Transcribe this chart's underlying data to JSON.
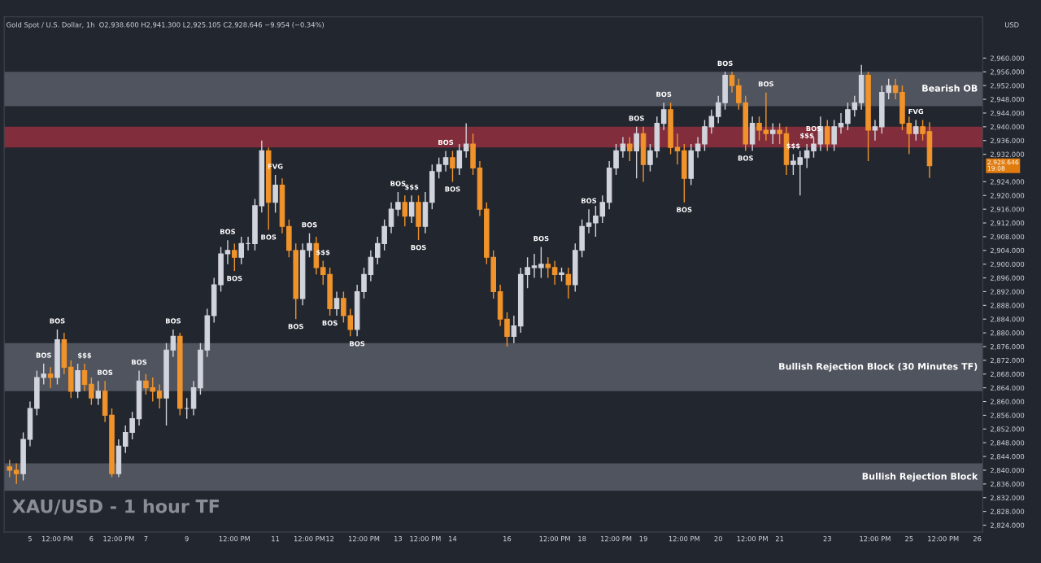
{
  "chart_data": {
    "type": "candlestick",
    "title": "XAU/USD - 1 hour TF",
    "subtitle": "Gold Spot / U.S. Dollar, 1h  O2,938.600 H2,941.300 L2,925.105 C2,928.646 −9.954 (−0.34%)",
    "categories": [
      null,
      null,
      null,
      "5",
      null,
      null,
      null,
      "12:00 PM",
      null,
      null,
      null,
      null,
      "6",
      null,
      null,
      null,
      "12:00 PM",
      null,
      null,
      null,
      "7",
      null,
      null,
      null,
      null,
      null,
      "9",
      null,
      null,
      null,
      null,
      null,
      null,
      "12:00 PM",
      null,
      null,
      null,
      null,
      null,
      "11",
      null,
      null,
      null,
      null,
      "12:00 PM",
      null,
      null,
      "12",
      null,
      null,
      null,
      null,
      "12:00 PM",
      null,
      null,
      null,
      null,
      "13",
      null,
      null,
      null,
      "12:00 PM",
      null,
      null,
      null,
      "14",
      null,
      null,
      null,
      null,
      null,
      null,
      null,
      "16",
      null,
      null,
      null,
      null,
      null,
      null,
      "12:00 PM",
      null,
      null,
      null,
      "18",
      null,
      null,
      null,
      null,
      "12:00 PM",
      null,
      null,
      null,
      "19",
      null,
      null,
      null,
      null,
      null,
      "12:00 PM",
      null,
      null,
      null,
      null,
      "20",
      null,
      null,
      null,
      null,
      "12:00 PM",
      null,
      null,
      null,
      "21",
      null,
      null,
      null,
      null,
      null,
      null,
      "23",
      null,
      null,
      null,
      null,
      null,
      null,
      "12:00 PM",
      null,
      null,
      null,
      null,
      "25",
      null,
      null,
      null,
      null,
      "12:00 PM",
      null,
      null,
      null,
      null,
      "26"
    ],
    "ohlc": [
      [
        2841,
        2843,
        2838,
        2840
      ],
      [
        2840,
        2842,
        2836,
        2839
      ],
      [
        2839,
        2851,
        2837,
        2849
      ],
      [
        2849,
        2860,
        2847,
        2858
      ],
      [
        2858,
        2869,
        2856,
        2867
      ],
      [
        2867,
        2871,
        2865,
        2868
      ],
      [
        2868,
        2870,
        2864,
        2867
      ],
      [
        2867,
        2881,
        2865,
        2878
      ],
      [
        2878,
        2880,
        2868,
        2870
      ],
      [
        2870,
        2872,
        2861,
        2863
      ],
      [
        2863,
        2871,
        2861,
        2869
      ],
      [
        2869,
        2871,
        2863,
        2865
      ],
      [
        2865,
        2867,
        2859,
        2861
      ],
      [
        2861,
        2866,
        2859,
        2863
      ],
      [
        2863,
        2866,
        2854,
        2856
      ],
      [
        2856,
        2858,
        2838,
        2839
      ],
      [
        2839,
        2849,
        2838,
        2847
      ],
      [
        2847,
        2853,
        2845,
        2851
      ],
      [
        2851,
        2857,
        2849,
        2855
      ],
      [
        2855,
        2869,
        2853,
        2866
      ],
      [
        2866,
        2868,
        2862,
        2864
      ],
      [
        2864,
        2867,
        2860,
        2863
      ],
      [
        2863,
        2865,
        2858,
        2861
      ],
      [
        2861,
        2877,
        2853,
        2875
      ],
      [
        2875,
        2881,
        2873,
        2879
      ],
      [
        2879,
        2880,
        2856,
        2858
      ],
      [
        2858,
        2861,
        2855,
        2858
      ],
      [
        2858,
        2866,
        2856,
        2864
      ],
      [
        2864,
        2877,
        2862,
        2875
      ],
      [
        2875,
        2887,
        2873,
        2885
      ],
      [
        2885,
        2896,
        2883,
        2894
      ],
      [
        2894,
        2905,
        2892,
        2903
      ],
      [
        2903,
        2907,
        2900,
        2904
      ],
      [
        2904,
        2906,
        2898,
        2902
      ],
      [
        2902,
        2908,
        2900,
        2906
      ],
      [
        2906,
        2908,
        2904,
        2906
      ],
      [
        2906,
        2919,
        2904,
        2917
      ],
      [
        2917,
        2936,
        2915,
        2933
      ],
      [
        2933,
        2934,
        2910,
        2918
      ],
      [
        2918,
        2926,
        2915,
        2923
      ],
      [
        2923,
        2925,
        2909,
        2911
      ],
      [
        2911,
        2913,
        2902,
        2904
      ],
      [
        2904,
        2906,
        2884,
        2890
      ],
      [
        2890,
        2906,
        2888,
        2904
      ],
      [
        2904,
        2909,
        2902,
        2906
      ],
      [
        2906,
        2908,
        2897,
        2899
      ],
      [
        2899,
        2901,
        2894,
        2897
      ],
      [
        2897,
        2899,
        2885,
        2887
      ],
      [
        2887,
        2892,
        2885,
        2890
      ],
      [
        2890,
        2892,
        2883,
        2885
      ],
      [
        2885,
        2887,
        2879,
        2881
      ],
      [
        2881,
        2894,
        2879,
        2892
      ],
      [
        2892,
        2899,
        2890,
        2897
      ],
      [
        2897,
        2904,
        2895,
        2902
      ],
      [
        2902,
        2908,
        2900,
        2906
      ],
      [
        2906,
        2913,
        2904,
        2911
      ],
      [
        2911,
        2918,
        2909,
        2916
      ],
      [
        2916,
        2921,
        2914,
        2918
      ],
      [
        2918,
        2920,
        2911,
        2914
      ],
      [
        2914,
        2920,
        2912,
        2918
      ],
      [
        2918,
        2920,
        2907,
        2911
      ],
      [
        2911,
        2921,
        2909,
        2918
      ],
      [
        2918,
        2929,
        2916,
        2927
      ],
      [
        2927,
        2931,
        2925,
        2929
      ],
      [
        2929,
        2933,
        2927,
        2931
      ],
      [
        2931,
        2933,
        2924,
        2928
      ],
      [
        2928,
        2935,
        2926,
        2933
      ],
      [
        2933,
        2941,
        2931,
        2935
      ],
      [
        2935,
        2938,
        2926,
        2928
      ],
      [
        2928,
        2930,
        2914,
        2916
      ],
      [
        2916,
        2918,
        2900,
        2902
      ],
      [
        2902,
        2904,
        2890,
        2892
      ],
      [
        2892,
        2894,
        2882,
        2884
      ],
      [
        2884,
        2886,
        2876,
        2879
      ],
      [
        2879,
        2885,
        2877,
        2882
      ],
      [
        2882,
        2899,
        2880,
        2897
      ],
      [
        2897,
        2902,
        2893,
        2899
      ],
      [
        2899,
        2903,
        2896,
        2899.5
      ],
      [
        2899,
        2905,
        2896,
        2900
      ],
      [
        2900,
        2902,
        2896,
        2899
      ],
      [
        2899,
        2901,
        2894,
        2897
      ],
      [
        2897,
        2899,
        2895,
        2897.5
      ],
      [
        2897,
        2899,
        2890,
        2894
      ],
      [
        2894,
        2906,
        2892,
        2904
      ],
      [
        2904,
        2913,
        2902,
        2911
      ],
      [
        2911,
        2916,
        2909,
        2912
      ],
      [
        2912,
        2917,
        2908,
        2914
      ],
      [
        2914,
        2920,
        2912,
        2918
      ],
      [
        2918,
        2930,
        2916,
        2928
      ],
      [
        2928,
        2935,
        2926,
        2933
      ],
      [
        2933,
        2937,
        2931,
        2935
      ],
      [
        2935,
        2937,
        2930,
        2933
      ],
      [
        2933,
        2940,
        2925,
        2938
      ],
      [
        2938,
        2940,
        2924,
        2929
      ],
      [
        2929,
        2935,
        2927,
        2933
      ],
      [
        2933,
        2943,
        2931,
        2941
      ],
      [
        2941,
        2947,
        2939,
        2945
      ],
      [
        2945,
        2947,
        2932,
        2934
      ],
      [
        2934,
        2938,
        2929,
        2933
      ],
      [
        2933,
        2935,
        2918,
        2925
      ],
      [
        2925,
        2935,
        2923,
        2933
      ],
      [
        2933,
        2937,
        2931,
        2935
      ],
      [
        2935,
        2942,
        2933,
        2940
      ],
      [
        2940,
        2945,
        2938,
        2943
      ],
      [
        2943,
        2949,
        2941,
        2947
      ],
      [
        2947,
        2956,
        2945,
        2955
      ],
      [
        2955,
        2956,
        2950,
        2952
      ],
      [
        2952,
        2954,
        2945,
        2947
      ],
      [
        2947,
        2949,
        2933,
        2935
      ],
      [
        2935,
        2943,
        2933,
        2941
      ],
      [
        2941,
        2943,
        2936,
        2939
      ],
      [
        2939,
        2950,
        2936,
        2938
      ],
      [
        2938,
        2941,
        2935,
        2939
      ],
      [
        2939,
        2941,
        2935,
        2938
      ],
      [
        2938,
        2940,
        2926,
        2929
      ],
      [
        2929,
        2932,
        2926,
        2930
      ],
      [
        2929,
        2933,
        2920,
        2931
      ],
      [
        2931,
        2935,
        2928,
        2933
      ],
      [
        2933,
        2937,
        2931,
        2935
      ],
      [
        2935,
        2943,
        2933,
        2940
      ],
      [
        2940,
        2942,
        2933,
        2935
      ],
      [
        2935,
        2942,
        2933,
        2940
      ],
      [
        2940,
        2944,
        2938,
        2941
      ],
      [
        2941,
        2947,
        2939,
        2945
      ],
      [
        2945,
        2949,
        2943,
        2947
      ],
      [
        2947,
        2958,
        2945,
        2955
      ],
      [
        2955,
        2956,
        2930,
        2939
      ],
      [
        2939,
        2942,
        2936,
        2940
      ],
      [
        2940,
        2952,
        2938,
        2950
      ],
      [
        2950,
        2954,
        2948,
        2952
      ],
      [
        2952,
        2954,
        2948,
        2950
      ],
      [
        2950,
        2952,
        2939,
        2941
      ],
      [
        2941,
        2943,
        2932,
        2938
      ],
      [
        2938,
        2942,
        2936,
        2940
      ],
      [
        2940,
        2942,
        2936,
        2938
      ],
      [
        2938.6,
        2941.3,
        2925.105,
        2928.646
      ],
      null,
      null,
      null,
      null,
      null,
      null,
      null
    ],
    "colors": [
      "#f0932b",
      "#f0932b",
      "#d1d4dc",
      "#d1d4dc",
      "#d1d4dc",
      "#d1d4dc",
      "#f0932b",
      "#d1d4dc",
      "#f0932b",
      "#f0932b",
      "#d1d4dc",
      "#f0932b",
      "#f0932b",
      "#d1d4dc",
      "#f0932b",
      "#f0932b",
      "#d1d4dc",
      "#d1d4dc",
      "#d1d4dc",
      "#d1d4dc",
      "#f0932b",
      "#f0932b",
      "#f0932b",
      "#d1d4dc",
      "#d1d4dc",
      "#f0932b",
      "#d1d4dc",
      "#d1d4dc",
      "#d1d4dc",
      "#d1d4dc",
      "#d1d4dc",
      "#d1d4dc",
      "#d1d4dc",
      "#f0932b",
      "#d1d4dc",
      "#d1d4dc",
      "#d1d4dc",
      "#d1d4dc",
      "#f0932b",
      "#d1d4dc",
      "#f0932b",
      "#f0932b",
      "#f0932b",
      "#d1d4dc",
      "#d1d4dc",
      "#f0932b",
      "#f0932b",
      "#f0932b",
      "#d1d4dc",
      "#f0932b",
      "#f0932b",
      "#d1d4dc",
      "#d1d4dc",
      "#d1d4dc",
      "#d1d4dc",
      "#d1d4dc",
      "#d1d4dc",
      "#d1d4dc",
      "#f0932b",
      "#d1d4dc",
      "#f0932b",
      "#d1d4dc",
      "#d1d4dc",
      "#d1d4dc",
      "#d1d4dc",
      "#f0932b",
      "#d1d4dc",
      "#d1d4dc",
      "#f0932b",
      "#f0932b",
      "#f0932b",
      "#f0932b",
      "#f0932b",
      "#f0932b",
      "#d1d4dc",
      "#d1d4dc",
      "#d1d4dc",
      "#d1d4dc",
      "#d1d4dc",
      "#f0932b",
      "#f0932b",
      "#d1d4dc",
      "#f0932b",
      "#d1d4dc",
      "#d1d4dc",
      "#d1d4dc",
      "#d1d4dc",
      "#d1d4dc",
      "#d1d4dc",
      "#d1d4dc",
      "#d1d4dc",
      "#f0932b",
      "#d1d4dc",
      "#f0932b",
      "#d1d4dc",
      "#d1d4dc",
      "#d1d4dc",
      "#f0932b",
      "#f0932b",
      "#f0932b",
      "#d1d4dc",
      "#d1d4dc",
      "#d1d4dc",
      "#d1d4dc",
      "#d1d4dc",
      "#d1d4dc",
      "#f0932b",
      "#f0932b",
      "#f0932b",
      "#d1d4dc",
      "#f0932b",
      "#f0932b",
      "#d1d4dc",
      "#f0932b",
      "#f0932b",
      "#d1d4dc",
      "#d1d4dc",
      "#d1d4dc",
      "#d1d4dc",
      "#d1d4dc",
      "#f0932b",
      "#d1d4dc",
      "#d1d4dc",
      "#d1d4dc",
      "#d1d4dc",
      "#d1d4dc",
      "#f0932b",
      "#d1d4dc",
      "#d1d4dc",
      "#d1d4dc",
      "#f0932b",
      "#f0932b",
      "#f0932b",
      "#d1d4dc",
      "#f0932b",
      "#f0932b",
      null,
      null,
      null,
      null,
      null,
      null,
      null
    ],
    "value_labels": [
      null,
      null,
      null,
      null,
      null,
      "BOS",
      null,
      "BOS",
      null,
      null,
      null,
      "$$$",
      null,
      null,
      "BOS",
      null,
      null,
      null,
      null,
      "BOS",
      null,
      null,
      null,
      null,
      "BOS",
      null,
      null,
      null,
      null,
      null,
      null,
      null,
      "BOS",
      "BOS",
      null,
      null,
      null,
      null,
      "BOS",
      "FVG",
      null,
      null,
      "BOS",
      null,
      "BOS",
      null,
      "$$$",
      "BOS",
      null,
      null,
      null,
      "BOS",
      null,
      null,
      null,
      null,
      null,
      "BOS",
      null,
      "$$$",
      "BOS",
      null,
      null,
      null,
      "BOS",
      "BOS",
      null,
      null,
      null,
      null,
      null,
      null,
      null,
      null,
      null,
      null,
      null,
      null,
      "BOS",
      null,
      null,
      null,
      null,
      null,
      null,
      "BOS",
      null,
      null,
      null,
      null,
      null,
      null,
      "BOS",
      null,
      null,
      null,
      "BOS",
      null,
      null,
      "BOS",
      null,
      null,
      null,
      null,
      null,
      "BOS",
      null,
      null,
      "BOS",
      null,
      null,
      "BOS",
      null,
      null,
      null,
      "$$$",
      null,
      "$$$",
      "BOS",
      null,
      null,
      null,
      null,
      null,
      null,
      null,
      null,
      null,
      null,
      null,
      null,
      null,
      null,
      "FVG",
      null,
      null,
      null,
      null,
      null,
      null,
      null,
      null,
      null
    ],
    "ylim": [
      2822,
      2972
    ],
    "yticks": [
      {
        "value": 2824,
        "label": "2,824.000"
      },
      {
        "value": 2828,
        "label": "2,828.000"
      },
      {
        "value": 2832,
        "label": "2,832.000"
      },
      {
        "value": 2836,
        "label": "2,836.000"
      },
      {
        "value": 2840,
        "label": "2,840.000"
      },
      {
        "value": 2844,
        "label": "2,844.000"
      },
      {
        "value": 2848,
        "label": "2,848.000"
      },
      {
        "value": 2852,
        "label": "2,852.000"
      },
      {
        "value": 2856,
        "label": "2,856.000"
      },
      {
        "value": 2860,
        "label": "2,860.000"
      },
      {
        "value": 2864,
        "label": "2,864.000"
      },
      {
        "value": 2868,
        "label": "2,868.000"
      },
      {
        "value": 2872,
        "label": "2,872.000"
      },
      {
        "value": 2876,
        "label": "2,876.000"
      },
      {
        "value": 2880,
        "label": "2,880.000"
      },
      {
        "value": 2884,
        "label": "2,884.000"
      },
      {
        "value": 2888,
        "label": "2,888.000"
      },
      {
        "value": 2892,
        "label": "2,892.000"
      },
      {
        "value": 2896,
        "label": "2,896.000"
      },
      {
        "value": 2900,
        "label": "2,900.000"
      },
      {
        "value": 2904,
        "label": "2,904.000"
      },
      {
        "value": 2908,
        "label": "2,908.000"
      },
      {
        "value": 2912,
        "label": "2,912.000"
      },
      {
        "value": 2916,
        "label": "2,916.000"
      },
      {
        "value": 2920,
        "label": "2,920.000"
      },
      {
        "value": 2924,
        "label": "2,924.000"
      },
      {
        "value": 2932,
        "label": "2,932.000"
      },
      {
        "value": 2936,
        "label": "2,936.000"
      },
      {
        "value": 2940,
        "label": "2,940.000"
      },
      {
        "value": 2944,
        "label": "2,944.000"
      },
      {
        "value": 2948,
        "label": "2,948.000"
      },
      {
        "value": 2952,
        "label": "2,952.000"
      },
      {
        "value": 2956,
        "label": "2,956.000"
      },
      {
        "value": 2960,
        "label": "2,960.000"
      }
    ],
    "bands": [
      {
        "axis": "y",
        "from": 2863,
        "to": 2877,
        "label": "Bullish Rejection Block (30 Minutes TF)",
        "color": "#5d606b"
      },
      {
        "axis": "y",
        "from": 2834,
        "to": 2842,
        "label": "Bullish Rejection Block",
        "color": "#5d606b"
      },
      {
        "axis": "y",
        "from": 2946,
        "to": 2956,
        "label": "Bearish OB",
        "color": "#5d606b"
      },
      {
        "axis": "y",
        "from": 2934,
        "to": 2940,
        "color": "#9b2f3e"
      }
    ],
    "annotations": [
      "USD",
      "2,928.646",
      "19:08"
    ],
    "grid": false
  }
}
